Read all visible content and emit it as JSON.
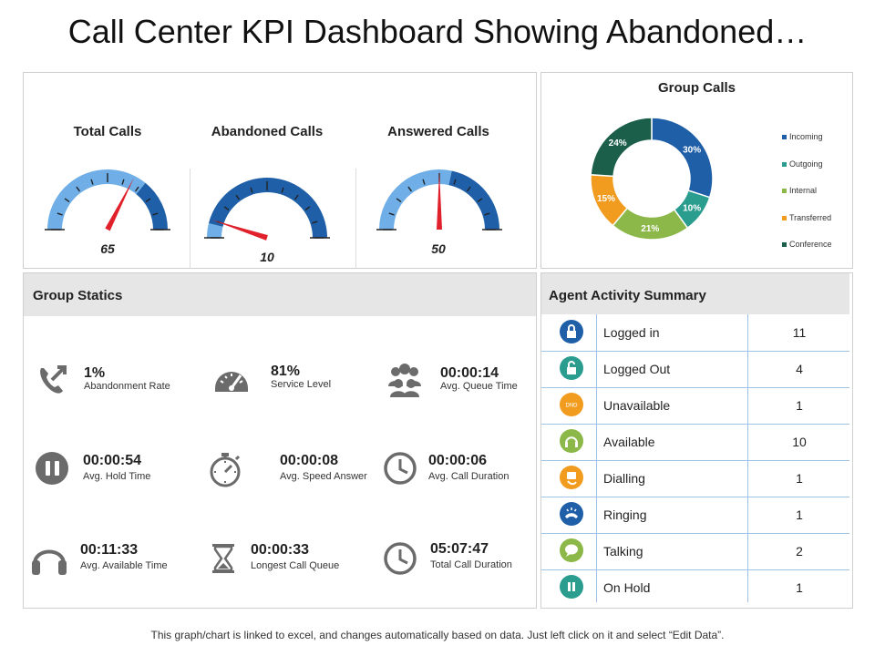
{
  "title": "Call Center KPI Dashboard Showing Abandoned…",
  "gauges": [
    {
      "label": "Total Calls",
      "value": "65",
      "fraction": 0.65
    },
    {
      "label": "Abandoned Calls",
      "value": "10",
      "fraction": 0.1
    },
    {
      "label": "Answered Calls",
      "value": "50",
      "fraction": 0.5
    }
  ],
  "colors": {
    "light_blue": "#6faee6",
    "dark_blue": "#1f5fa8",
    "needle": "#e0202a"
  },
  "chart_data": {
    "type": "pie",
    "title": "Group Calls",
    "slices": [
      {
        "name": "Incoming",
        "value": 30,
        "label": "30%",
        "color": "#1f5fa8"
      },
      {
        "name": "Outgoing",
        "value": 10,
        "label": "10%",
        "color": "#2a9d8f"
      },
      {
        "name": "Internal",
        "value": 21,
        "label": "21%",
        "color": "#8cb84a"
      },
      {
        "name": "Transferred",
        "value": 15,
        "label": "15%",
        "color": "#f29c1f"
      },
      {
        "name": "Conference",
        "value": 24,
        "label": "24%",
        "color": "#1b5e4a"
      }
    ],
    "legend_position": "right"
  },
  "group_statics": {
    "title": "Group Statics",
    "items": [
      {
        "value": "1%",
        "label": "Abandonment Rate",
        "icon": "phone-callback-icon"
      },
      {
        "value": "81%",
        "label": "Service Level",
        "icon": "speedometer-icon"
      },
      {
        "value": "00:00:14",
        "label": "Avg. Queue Time",
        "icon": "people-group-icon"
      },
      {
        "value": "00:00:54",
        "label": "Avg. Hold Time",
        "icon": "pause-icon"
      },
      {
        "value": "00:00:08",
        "label": "Avg. Speed Answer",
        "icon": "stopwatch-icon"
      },
      {
        "value": "00:00:06",
        "label": "Avg. Call Duration",
        "icon": "clock-icon"
      },
      {
        "value": "00:11:33",
        "label": "Avg. Available Time",
        "icon": "headphones-icon"
      },
      {
        "value": "00:00:33",
        "label": "Longest Call Queue",
        "icon": "hourglass-icon"
      },
      {
        "value": "05:07:47",
        "label": "Total Call Duration",
        "icon": "clock-icon"
      }
    ]
  },
  "agent_activity": {
    "title": "Agent Activity Summary",
    "rows": [
      {
        "label": "Logged in",
        "count": "11",
        "icon": "lock-icon",
        "color": "#1f5fa8"
      },
      {
        "label": "Logged Out",
        "count": "4",
        "icon": "unlock-icon",
        "color": "#2a9d8f"
      },
      {
        "label": "Unavailable",
        "count": "1",
        "icon": "dnd-icon",
        "icon_text": "DND",
        "color": "#f29c1f"
      },
      {
        "label": "Available",
        "count": "10",
        "icon": "headset-icon",
        "color": "#8cb84a"
      },
      {
        "label": "Dialling",
        "count": "1",
        "icon": "dialpad-icon",
        "color": "#f29c1f"
      },
      {
        "label": "Ringing",
        "count": "1",
        "icon": "ringing-phone-icon",
        "color": "#1f5fa8"
      },
      {
        "label": "Talking",
        "count": "2",
        "icon": "chat-bubble-icon",
        "color": "#8cb84a"
      },
      {
        "label": "On Hold",
        "count": "1",
        "icon": "pause-icon",
        "color": "#2a9d8f"
      }
    ]
  },
  "footer": "This graph/chart is linked to excel, and changes automatically based on data. Just left click on it and select “Edit Data”."
}
